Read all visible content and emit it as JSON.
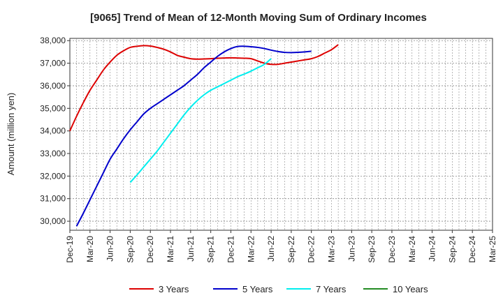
{
  "chart_data": {
    "type": "line",
    "title": "[9065]  Trend of Mean of 12-Month Moving Sum of Ordinary Incomes",
    "xlabel": "",
    "ylabel": "Amount (million yen)",
    "ylim": [
      29600,
      38100
    ],
    "y_ticks": [
      30000,
      31000,
      32000,
      33000,
      34000,
      35000,
      36000,
      37000,
      38000
    ],
    "y_tick_labels": [
      "30,000",
      "31,000",
      "32,000",
      "33,000",
      "34,000",
      "35,000",
      "36,000",
      "37,000",
      "38,000"
    ],
    "x_tick_labels": [
      "Dec-19",
      "Mar-20",
      "Jun-20",
      "Sep-20",
      "Dec-20",
      "Mar-21",
      "Jun-21",
      "Sep-21",
      "Dec-21",
      "Mar-22",
      "Jun-22",
      "Sep-22",
      "Dec-22",
      "Mar-23",
      "Jun-23",
      "Sep-23",
      "Dec-23",
      "Mar-24",
      "Jun-24",
      "Sep-24",
      "Dec-24",
      "Mar-25"
    ],
    "grid": true,
    "legend_position": "bottom",
    "series": [
      {
        "name": "3 Years",
        "color": "#dd0000",
        "start_index": 0,
        "values": [
          34000,
          34650,
          35250,
          35800,
          36250,
          36700,
          37050,
          37350,
          37550,
          37700,
          37750,
          37780,
          37760,
          37700,
          37620,
          37500,
          37350,
          37270,
          37200,
          37180,
          37190,
          37200,
          37220,
          37230,
          37240,
          37230,
          37220,
          37200,
          37100,
          37000,
          36950,
          36950,
          37000,
          37050,
          37100,
          37150,
          37200,
          37300,
          37450,
          37600,
          37820
        ]
      },
      {
        "name": "5 Years",
        "color": "#0000cc",
        "start_index": 1,
        "values": [
          29780,
          30350,
          30950,
          31550,
          32150,
          32750,
          33200,
          33650,
          34050,
          34400,
          34750,
          35000,
          35200,
          35400,
          35600,
          35800,
          36000,
          36250,
          36500,
          36800,
          37050,
          37300,
          37500,
          37650,
          37740,
          37750,
          37730,
          37700,
          37650,
          37580,
          37520,
          37480,
          37470,
          37480,
          37500,
          37530
        ]
      },
      {
        "name": "7 Years",
        "color": "#00eeee",
        "start_index": 9,
        "values": [
          31720,
          32050,
          32400,
          32750,
          33100,
          33500,
          33900,
          34300,
          34700,
          35050,
          35350,
          35600,
          35800,
          35950,
          36100,
          36250,
          36400,
          36520,
          36650,
          36800,
          36950,
          37200
        ]
      },
      {
        "name": "10 Years",
        "color": "#228b22",
        "start_index": 0,
        "values": []
      }
    ]
  }
}
